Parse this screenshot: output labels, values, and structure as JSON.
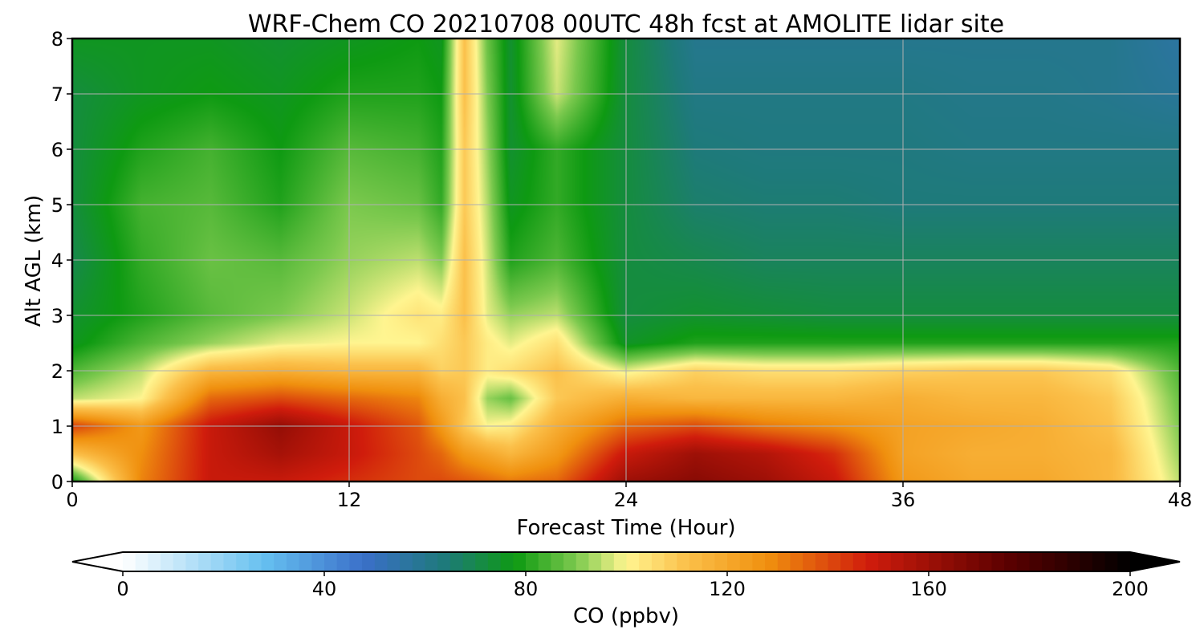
{
  "chart_data": {
    "type": "heatmap",
    "title": "WRF-Chem CO  20210708 00UTC 48h fcst at AMOLITE lidar site",
    "xlabel": "Forecast Time (Hour)",
    "ylabel": "Alt AGL (km)",
    "xlim": [
      0,
      48
    ],
    "ylim": [
      0,
      8
    ],
    "x_ticks": [
      0,
      12,
      24,
      36,
      48
    ],
    "y_ticks": [
      0,
      1,
      2,
      3,
      4,
      5,
      6,
      7,
      8
    ],
    "grid": true,
    "x_hours": [
      0,
      3,
      6,
      9,
      12,
      15,
      16,
      17,
      18,
      19,
      21,
      24,
      27,
      30,
      33,
      36,
      39,
      42,
      45,
      48
    ],
    "y_km": [
      0,
      0.5,
      1,
      1.5,
      2,
      2.5,
      3,
      4,
      5,
      6,
      7,
      8
    ],
    "co_ppbv": [
      [
        78,
        130,
        150,
        150,
        145,
        140,
        140,
        138,
        135,
        132,
        135,
        160,
        165,
        160,
        150,
        125,
        120,
        120,
        115,
        95
      ],
      [
        112,
        128,
        150,
        158,
        150,
        140,
        135,
        125,
        120,
        115,
        125,
        150,
        160,
        155,
        145,
        122,
        118,
        118,
        115,
        92
      ],
      [
        142,
        125,
        150,
        162,
        150,
        138,
        125,
        110,
        100,
        102,
        118,
        135,
        140,
        132,
        128,
        122,
        120,
        118,
        112,
        90
      ],
      [
        95,
        100,
        135,
        140,
        135,
        130,
        118,
        112,
        92,
        88,
        110,
        118,
        115,
        115,
        115,
        118,
        115,
        115,
        110,
        88
      ],
      [
        85,
        95,
        115,
        118,
        115,
        115,
        108,
        110,
        102,
        105,
        112,
        98,
        108,
        105,
        105,
        108,
        110,
        110,
        105,
        85
      ],
      [
        76,
        85,
        92,
        98,
        100,
        100,
        105,
        110,
        102,
        98,
        105,
        75,
        80,
        80,
        80,
        80,
        80,
        80,
        80,
        80
      ],
      [
        74,
        80,
        86,
        90,
        96,
        104,
        102,
        112,
        98,
        92,
        95,
        72,
        74,
        73,
        72,
        72,
        72,
        72,
        72,
        72
      ],
      [
        70,
        82,
        88,
        86,
        92,
        95,
        90,
        112,
        96,
        80,
        85,
        72,
        70,
        68,
        68,
        68,
        68,
        68,
        68,
        68
      ],
      [
        72,
        84,
        86,
        80,
        90,
        88,
        82,
        110,
        94,
        76,
        82,
        72,
        66,
        65,
        65,
        64,
        64,
        64,
        64,
        64
      ],
      [
        72,
        80,
        84,
        78,
        86,
        84,
        80,
        110,
        92,
        74,
        82,
        72,
        64,
        63,
        63,
        63,
        62,
        62,
        62,
        62
      ],
      [
        72,
        76,
        78,
        76,
        80,
        80,
        78,
        112,
        90,
        74,
        96,
        72,
        62,
        62,
        62,
        62,
        61,
        61,
        60,
        58
      ],
      [
        76,
        76,
        76,
        74,
        76,
        78,
        76,
        112,
        88,
        74,
        98,
        72,
        60,
        60,
        60,
        60,
        60,
        60,
        60,
        56
      ]
    ],
    "colorbar": {
      "label": "CO  (ppbv)",
      "min": 0,
      "max": 200,
      "extend": "both",
      "ticks": [
        0,
        40,
        80,
        120,
        160,
        200
      ],
      "stops": [
        [
          0,
          "#ffffff"
        ],
        [
          28,
          "#66c0f0"
        ],
        [
          48,
          "#3a6fc8"
        ],
        [
          64,
          "#1e7a7a"
        ],
        [
          78,
          "#0e9a12"
        ],
        [
          90,
          "#7cc94e"
        ],
        [
          100,
          "#fff590"
        ],
        [
          112,
          "#fbc04a"
        ],
        [
          128,
          "#f0900e"
        ],
        [
          148,
          "#d01c0c"
        ],
        [
          176,
          "#5a0000"
        ],
        [
          200,
          "#000000"
        ]
      ]
    }
  }
}
